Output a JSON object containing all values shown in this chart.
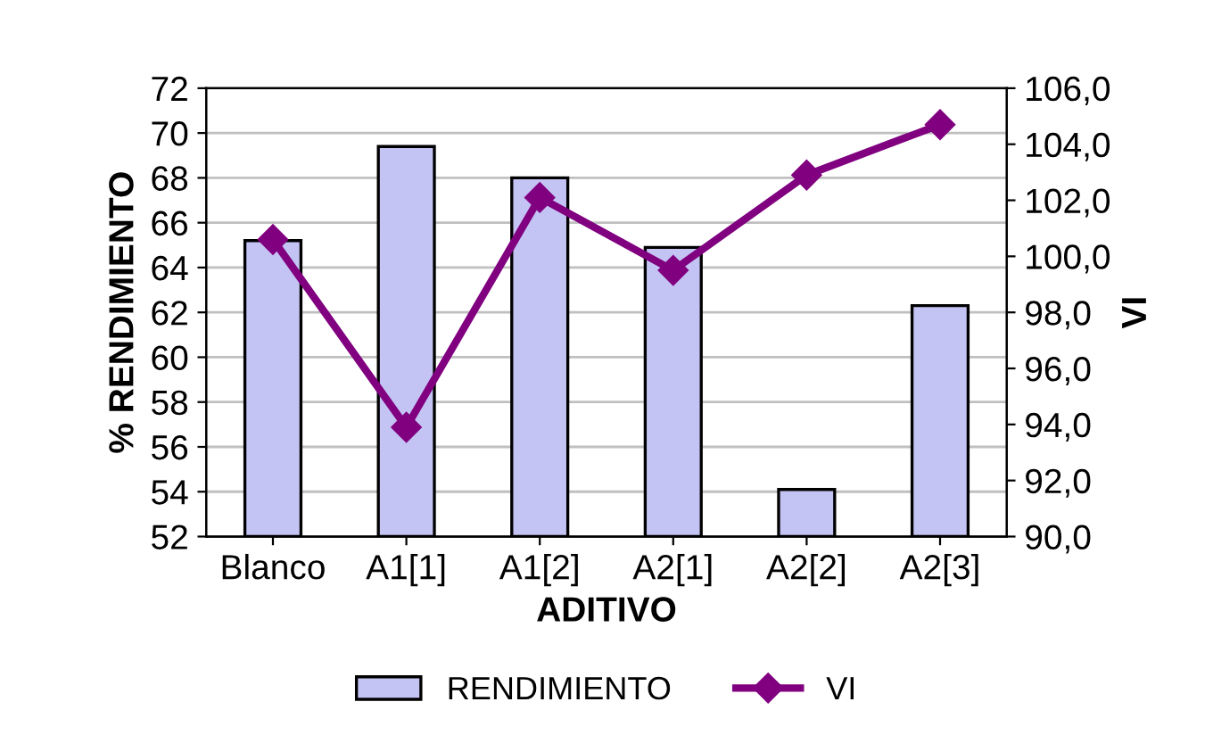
{
  "chart_data": {
    "type": "bar",
    "xlabel": "ADITIVO",
    "ylabel": "% RENDIMIENTO",
    "y2label": "VI",
    "categories": [
      "Blanco",
      "A1[1]",
      "A1[2]",
      "A2[1]",
      "A2[2]",
      "A2[3]"
    ],
    "series": [
      {
        "name": "RENDIMIENTO",
        "color": "#c4c4f4",
        "values": [
          65.2,
          69.4,
          68.0,
          64.9,
          54.1,
          62.3
        ]
      },
      {
        "name": "VI",
        "type": "line",
        "axis": "y2",
        "color": "#800080",
        "marker": "diamond",
        "values": [
          100.6,
          93.9,
          102.1,
          99.5,
          102.9,
          104.7
        ]
      }
    ],
    "ylim": [
      52,
      72
    ],
    "yticks": [
      52,
      54,
      56,
      58,
      60,
      62,
      64,
      66,
      68,
      70,
      72
    ],
    "y2lim": [
      90,
      106
    ],
    "y2ticks": [
      {
        "value": 90,
        "label": "90,0"
      },
      {
        "value": 92,
        "label": "92,0"
      },
      {
        "value": 94,
        "label": "94,0"
      },
      {
        "value": 96,
        "label": "96,0"
      },
      {
        "value": 98,
        "label": "98,0"
      },
      {
        "value": 100,
        "label": "100,0"
      },
      {
        "value": 102,
        "label": "102,0"
      },
      {
        "value": 104,
        "label": "104,0"
      },
      {
        "value": 106,
        "label": "106,0"
      }
    ],
    "grid": "y",
    "legend": "bottom"
  }
}
